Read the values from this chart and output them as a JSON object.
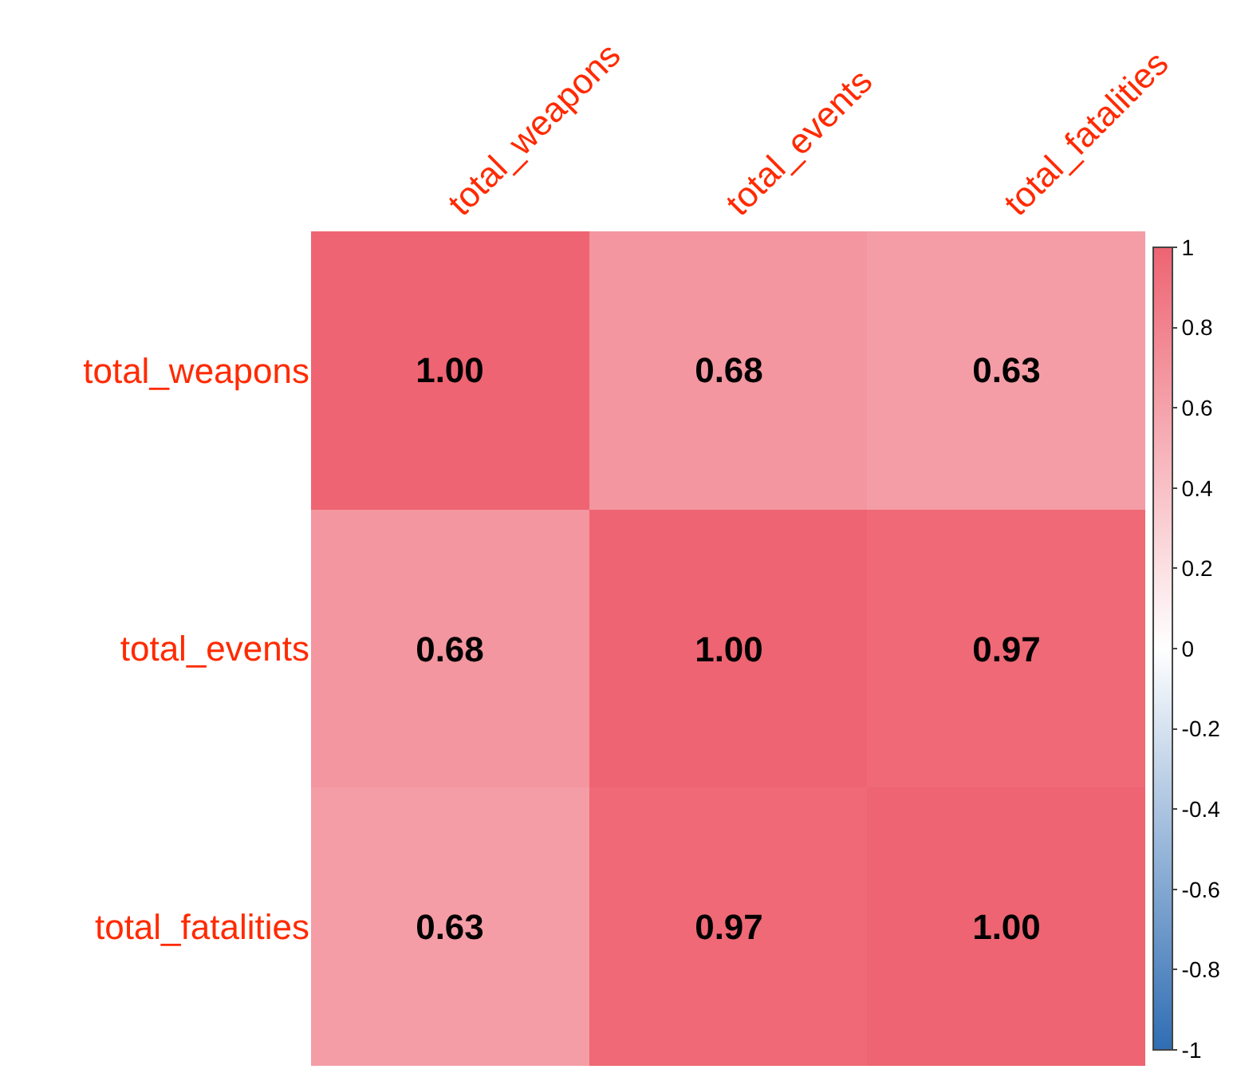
{
  "chart_data": {
    "type": "heatmap",
    "categories": [
      "total_weapons",
      "total_events",
      "total_fatalities"
    ],
    "y_categories": [
      "total_weapons",
      "total_events",
      "total_fatalities"
    ],
    "cells": [
      [
        1.0,
        0.68,
        0.63
      ],
      [
        0.68,
        1.0,
        0.97
      ],
      [
        0.63,
        0.97,
        1.0
      ]
    ],
    "cell_labels": [
      [
        "1.00",
        "0.68",
        "0.63"
      ],
      [
        "0.68",
        "1.00",
        "0.97"
      ],
      [
        "0.63",
        "0.97",
        "1.00"
      ]
    ],
    "clim": [
      -1,
      1
    ],
    "cticks": [
      -1,
      -0.8,
      -0.6,
      -0.4,
      -0.2,
      0,
      0.2,
      0.4,
      0.6,
      0.8,
      1
    ]
  }
}
